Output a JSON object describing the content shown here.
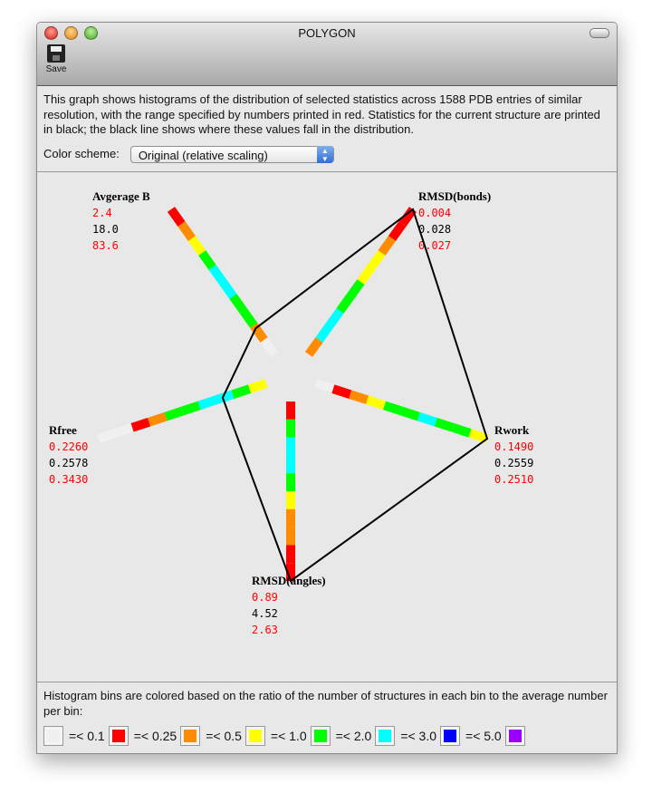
{
  "window": {
    "title": "POLYGON"
  },
  "toolbar": {
    "save_label": "Save"
  },
  "description": "This graph shows histograms of the distribution of selected statistics across 1588 PDB entries of similar resolution, with the range specified by numbers printed in red.  Statistics for the current structure are printed in black; the black line shows where these values fall in the distribution.",
  "color_scheme": {
    "label": "Color scheme:",
    "selected": "Original (relative scaling)"
  },
  "axes": [
    {
      "name": "Avgerage B",
      "min": "2.4",
      "current": "18.0",
      "max": "83.6",
      "position": 0.18,
      "bins": [
        "white",
        "orange",
        "green",
        "green",
        "cyan",
        "cyan",
        "green",
        "yellow",
        "orange",
        "red"
      ]
    },
    {
      "name": "RMSD(bonds)",
      "min": "0.004",
      "current": "0.028",
      "max": "0.027",
      "position": 1.0,
      "bins": [
        "orange",
        "cyan",
        "cyan",
        "green",
        "green",
        "yellow",
        "yellow",
        "orange",
        "red",
        "red"
      ]
    },
    {
      "name": "Rwork",
      "min": "0.1490",
      "current": "0.2559",
      "max": "0.2510",
      "position": 1.0,
      "bins": [
        "white",
        "red",
        "orange",
        "yellow",
        "green",
        "green",
        "cyan",
        "green",
        "green",
        "yellow"
      ]
    },
    {
      "name": "RMSD(angles)",
      "min": "0.89",
      "current": "4.52",
      "max": "2.63",
      "position": 1.0,
      "bins": [
        "red",
        "green",
        "cyan",
        "cyan",
        "green",
        "yellow",
        "orange",
        "orange",
        "red",
        "red"
      ]
    },
    {
      "name": "Rfree",
      "min": "0.2260",
      "current": "0.2578",
      "max": "0.3430",
      "position": 0.26,
      "bins": [
        "yellow",
        "green",
        "cyan",
        "cyan",
        "green",
        "green",
        "orange",
        "red",
        "white",
        "white"
      ]
    }
  ],
  "colors": {
    "white": "#f0f0f0",
    "red": "#ff0000",
    "orange": "#ff8c00",
    "yellow": "#ffff00",
    "green": "#00ff00",
    "cyan": "#00ffff",
    "blue": "#0000ff",
    "purple": "#9900ff",
    "range": "#ff0000",
    "current": "#000000"
  },
  "legend": {
    "text": "Histogram bins are colored based on the ratio of the number of structures in each bin to the average number per bin:",
    "items": [
      {
        "color": "white",
        "label": "=< 0.1"
      },
      {
        "color": "red",
        "label": "=< 0.25"
      },
      {
        "color": "orange",
        "label": "=< 0.5"
      },
      {
        "color": "yellow",
        "label": "=< 1.0"
      },
      {
        "color": "green",
        "label": "=< 2.0"
      },
      {
        "color": "cyan",
        "label": "=< 3.0"
      },
      {
        "color": "blue",
        "label": "=< 5.0"
      },
      {
        "color": "purple",
        "label": ""
      }
    ]
  }
}
